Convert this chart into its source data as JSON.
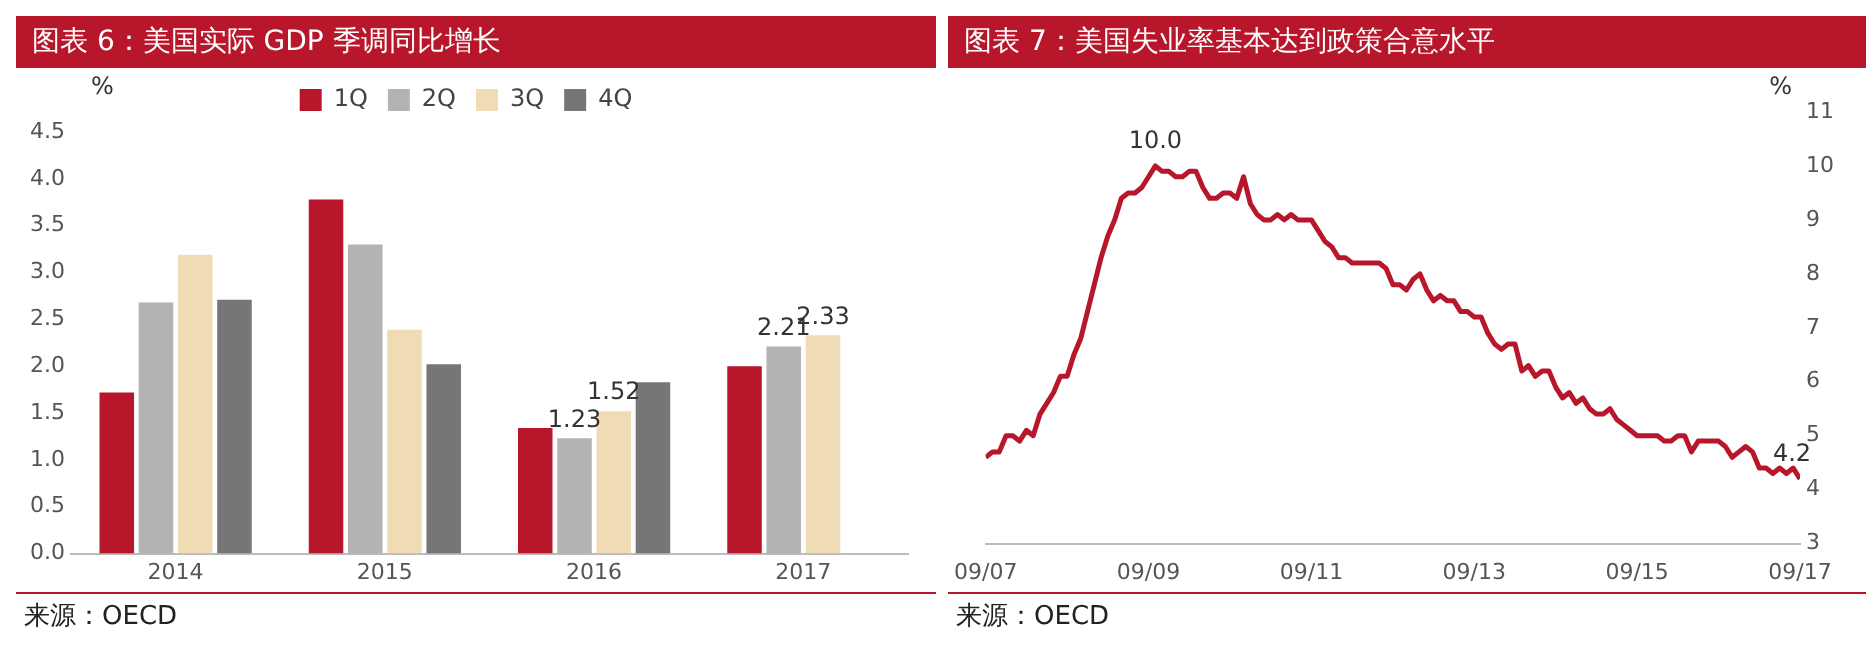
{
  "chart_data": [
    {
      "type": "bar",
      "title": "图表 6：美国实际 GDP 季调同比增长",
      "ylabel": "%",
      "annotations": [
        "来源：OECD"
      ],
      "categories": [
        "2014",
        "2015",
        "2016",
        "2017"
      ],
      "series": [
        {
          "name": "1Q",
          "color": "#b8172b",
          "values": [
            1.72,
            3.78,
            1.34,
            2.0
          ]
        },
        {
          "name": "2Q",
          "color": "#b3b3b3",
          "values": [
            2.68,
            3.3,
            1.23,
            2.21
          ],
          "value_labels": [
            null,
            null,
            "1.23",
            "2.21"
          ]
        },
        {
          "name": "3Q",
          "color": "#f0dcb4",
          "values": [
            3.19,
            2.39,
            1.52,
            2.33
          ],
          "value_labels": [
            null,
            null,
            "1.52",
            "2.33"
          ]
        },
        {
          "name": "4Q",
          "color": "#767676",
          "values": [
            2.71,
            2.02,
            1.83,
            null
          ]
        }
      ],
      "ylim": [
        0,
        4.5
      ],
      "yticks": [
        {
          "value": 0,
          "label": "0.0"
        },
        0.5,
        {
          "value": 1,
          "label": "1.0"
        },
        1.5,
        {
          "value": 2,
          "label": "2.0"
        },
        2.5,
        {
          "value": 3,
          "label": "3.0"
        },
        3.5,
        {
          "value": 4,
          "label": "4.0"
        },
        4.5
      ],
      "grid": false,
      "legend": "top"
    },
    {
      "type": "line",
      "title": "图表 7：美国失业率基本达到政策合意水平",
      "ylabel": "%",
      "annotations": [
        "来源：OECD",
        {
          "text": "10.0",
          "x": "2009-10",
          "y": 10.0
        },
        {
          "text": "4.2",
          "x": "2017-09",
          "y": 4.2
        }
      ],
      "x": [
        "2007-09",
        "2007-10",
        "2007-11",
        "2007-12",
        "2008-01",
        "2008-02",
        "2008-03",
        "2008-04",
        "2008-05",
        "2008-06",
        "2008-07",
        "2008-08",
        "2008-09",
        "2008-10",
        "2008-11",
        "2008-12",
        "2009-01",
        "2009-02",
        "2009-03",
        "2009-04",
        "2009-05",
        "2009-06",
        "2009-07",
        "2009-08",
        "2009-09",
        "2009-10",
        "2009-11",
        "2009-12",
        "2010-01",
        "2010-02",
        "2010-03",
        "2010-04",
        "2010-05",
        "2010-06",
        "2010-07",
        "2010-08",
        "2010-09",
        "2010-10",
        "2010-11",
        "2010-12",
        "2011-01",
        "2011-02",
        "2011-03",
        "2011-04",
        "2011-05",
        "2011-06",
        "2011-07",
        "2011-08",
        "2011-09",
        "2011-10",
        "2011-11",
        "2011-12",
        "2012-01",
        "2012-02",
        "2012-03",
        "2012-04",
        "2012-05",
        "2012-06",
        "2012-07",
        "2012-08",
        "2012-09",
        "2012-10",
        "2012-11",
        "2012-12",
        "2013-01",
        "2013-02",
        "2013-03",
        "2013-04",
        "2013-05",
        "2013-06",
        "2013-07",
        "2013-08",
        "2013-09",
        "2013-10",
        "2013-11",
        "2013-12",
        "2014-01",
        "2014-02",
        "2014-03",
        "2014-04",
        "2014-05",
        "2014-06",
        "2014-07",
        "2014-08",
        "2014-09",
        "2014-10",
        "2014-11",
        "2014-12",
        "2015-01",
        "2015-02",
        "2015-03",
        "2015-04",
        "2015-05",
        "2015-06",
        "2015-07",
        "2015-08",
        "2015-09",
        "2015-10",
        "2015-11",
        "2015-12",
        "2016-01",
        "2016-02",
        "2016-03",
        "2016-04",
        "2016-05",
        "2016-06",
        "2016-07",
        "2016-08",
        "2016-09",
        "2016-10",
        "2016-11",
        "2016-12",
        "2017-01",
        "2017-02",
        "2017-03",
        "2017-04",
        "2017-05",
        "2017-06",
        "2017-07",
        "2017-08",
        "2017-09"
      ],
      "series": [
        {
          "color": "#b8172b",
          "values": [
            4.6,
            4.7,
            4.7,
            5.0,
            5.0,
            4.9,
            5.1,
            5.0,
            5.4,
            5.6,
            5.8,
            6.1,
            6.1,
            6.5,
            6.8,
            7.3,
            7.8,
            8.3,
            8.7,
            9.0,
            9.4,
            9.5,
            9.5,
            9.6,
            9.8,
            10.0,
            9.9,
            9.9,
            9.8,
            9.8,
            9.9,
            9.9,
            9.6,
            9.4,
            9.4,
            9.5,
            9.5,
            9.4,
            9.8,
            9.3,
            9.1,
            9.0,
            9.0,
            9.1,
            9.0,
            9.1,
            9.0,
            9.0,
            9.0,
            8.8,
            8.6,
            8.5,
            8.3,
            8.3,
            8.2,
            8.2,
            8.2,
            8.2,
            8.2,
            8.1,
            7.8,
            7.8,
            7.7,
            7.9,
            8.0,
            7.7,
            7.5,
            7.6,
            7.5,
            7.5,
            7.3,
            7.3,
            7.2,
            7.2,
            6.9,
            6.7,
            6.6,
            6.7,
            6.7,
            6.2,
            6.3,
            6.1,
            6.2,
            6.2,
            5.9,
            5.7,
            5.8,
            5.6,
            5.7,
            5.5,
            5.4,
            5.4,
            5.5,
            5.3,
            5.2,
            5.1,
            5.0,
            5.0,
            5.0,
            5.0,
            4.9,
            4.9,
            5.0,
            5.0,
            4.7,
            4.9,
            4.9,
            4.9,
            4.9,
            4.8,
            4.6,
            4.7,
            4.8,
            4.7,
            4.4,
            4.4,
            4.3,
            4.4,
            4.3,
            4.4,
            4.2
          ]
        }
      ],
      "xlim": [
        "2007-09",
        "2017-09"
      ],
      "xticks": [
        {
          "value": "2007-09",
          "label": "09/07"
        },
        {
          "value": "2009-09",
          "label": "09/09"
        },
        {
          "value": "2011-09",
          "label": "09/11"
        },
        {
          "value": "2013-09",
          "label": "09/13"
        },
        {
          "value": "2015-09",
          "label": "09/15"
        },
        {
          "value": "2017-09",
          "label": "09/17"
        }
      ],
      "ylim": [
        3,
        11
      ],
      "yticks": [
        3,
        4,
        5,
        6,
        7,
        8,
        9,
        10,
        11
      ],
      "grid": false,
      "legend": false,
      "marker": "none",
      "line_style": "solid"
    }
  ]
}
